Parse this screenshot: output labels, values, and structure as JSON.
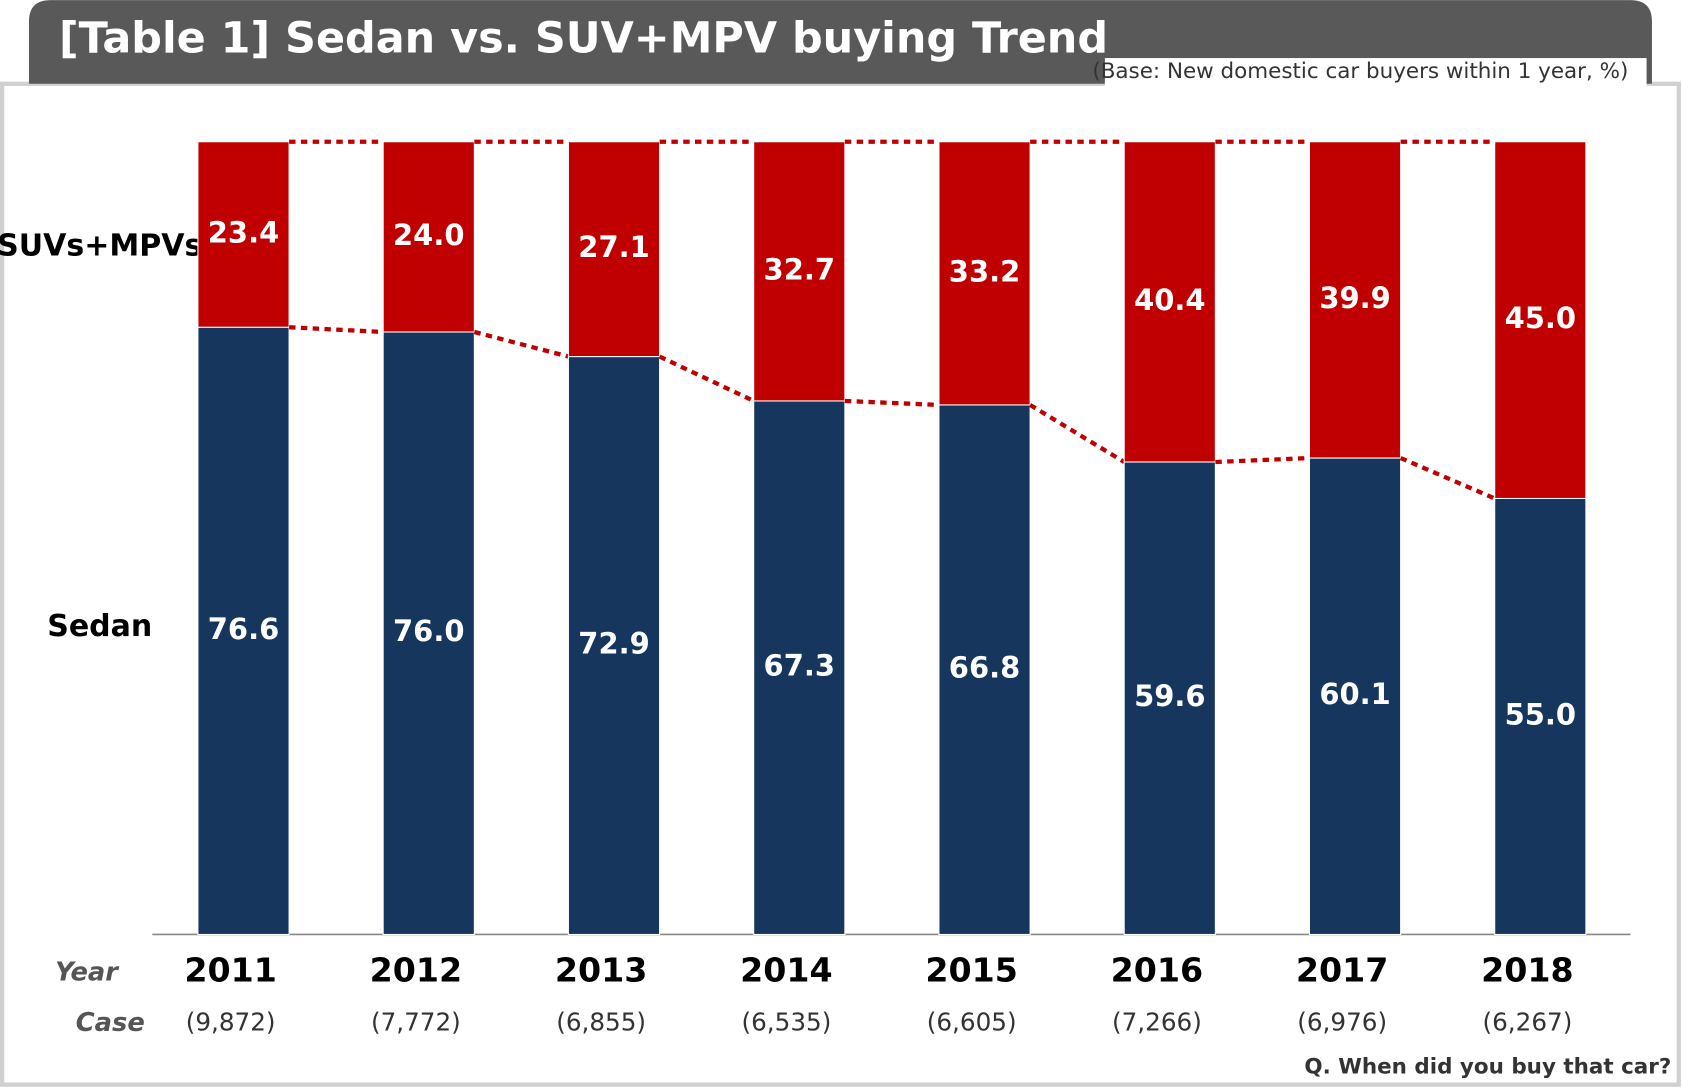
{
  "chart_data": {
    "type": "stacked_bar",
    "title": "[Table 1] Sedan vs. SUV+MPV buying Trend",
    "subtitle": "(Base: New domestic car buyers within 1 year, %)",
    "footnote": "Q. When did you buy that car?",
    "row_labels": [
      "Year",
      "Case"
    ],
    "categories": [
      "2011",
      "2012",
      "2013",
      "2014",
      "2015",
      "2016",
      "2017",
      "2018"
    ],
    "cases": [
      "(9,872)",
      "(7,772)",
      "(6,855)",
      "(6,535)",
      "(6,605)",
      "(7,266)",
      "(6,976)",
      "(6,267)"
    ],
    "ylim": [
      0,
      100
    ],
    "series": [
      {
        "name": "Sedan",
        "color": "#17365d",
        "values": [
          76.6,
          76.0,
          72.9,
          67.3,
          66.8,
          59.6,
          60.1,
          55.0
        ],
        "value_labels": [
          "76.6",
          "76.0",
          "72.9",
          "67.3",
          "66.8",
          "59.6",
          "60.1",
          "55.0"
        ]
      },
      {
        "name": "SUVs+MPVs",
        "color": "#c00000",
        "values": [
          23.4,
          24.0,
          27.1,
          32.7,
          33.2,
          40.4,
          39.9,
          45.0
        ],
        "value_labels": [
          "23.4",
          "24.0",
          "27.1",
          "32.7",
          "33.2",
          "40.4",
          "39.9",
          "45.0"
        ]
      }
    ]
  }
}
